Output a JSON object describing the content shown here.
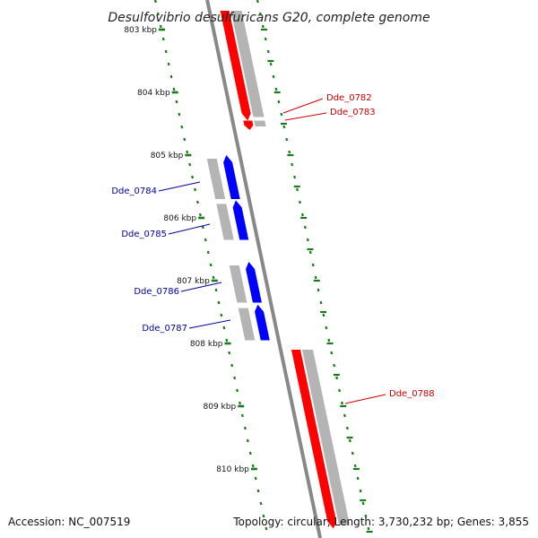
{
  "title": "Desulfovibrio desulfuricans G20, complete genome",
  "footer": {
    "accession": "Accession: NC_007519",
    "summary": "Topology: circular; Length: 3,730,232 bp; Genes: 3,855"
  },
  "colors": {
    "forward_gene": "#ff0000",
    "reverse_gene": "#0000ff",
    "gene_shadow": "#b4b4b4",
    "backbone": "#888888",
    "tick": "#1a7a1a",
    "forward_label": "#cc0000",
    "reverse_label": "#000099"
  },
  "ticks": [
    {
      "kbp": 803,
      "label": "803 kbp"
    },
    {
      "kbp": 804,
      "label": "804 kbp"
    },
    {
      "kbp": 805,
      "label": "805 kbp"
    },
    {
      "kbp": 806,
      "label": "806 kbp"
    },
    {
      "kbp": 807,
      "label": "807 kbp"
    },
    {
      "kbp": 808,
      "label": "808 kbp"
    },
    {
      "kbp": 809,
      "label": "809 kbp"
    },
    {
      "kbp": 810,
      "label": "810 kbp"
    }
  ],
  "genes": [
    {
      "id": "Dde_0782",
      "label": "Dde_0782",
      "strand": "forward",
      "start_kbp": 802.7,
      "end_kbp": 804.45
    },
    {
      "id": "Dde_0783",
      "label": "Dde_0783",
      "strand": "forward",
      "start_kbp": 804.45,
      "end_kbp": 804.6
    },
    {
      "id": "Dde_0784",
      "label": "Dde_0784",
      "strand": "reverse",
      "start_kbp": 805.0,
      "end_kbp": 805.7
    },
    {
      "id": "Dde_0785",
      "label": "Dde_0785",
      "strand": "reverse",
      "start_kbp": 805.72,
      "end_kbp": 806.35
    },
    {
      "id": "Dde_0786",
      "label": "Dde_0786",
      "strand": "reverse",
      "start_kbp": 806.7,
      "end_kbp": 807.35
    },
    {
      "id": "Dde_0787",
      "label": "Dde_0787",
      "strand": "reverse",
      "start_kbp": 807.38,
      "end_kbp": 807.95
    },
    {
      "id": "Dde_0788",
      "label": "Dde_0788",
      "strand": "forward",
      "start_kbp": 808.1,
      "end_kbp": 810.95
    }
  ]
}
